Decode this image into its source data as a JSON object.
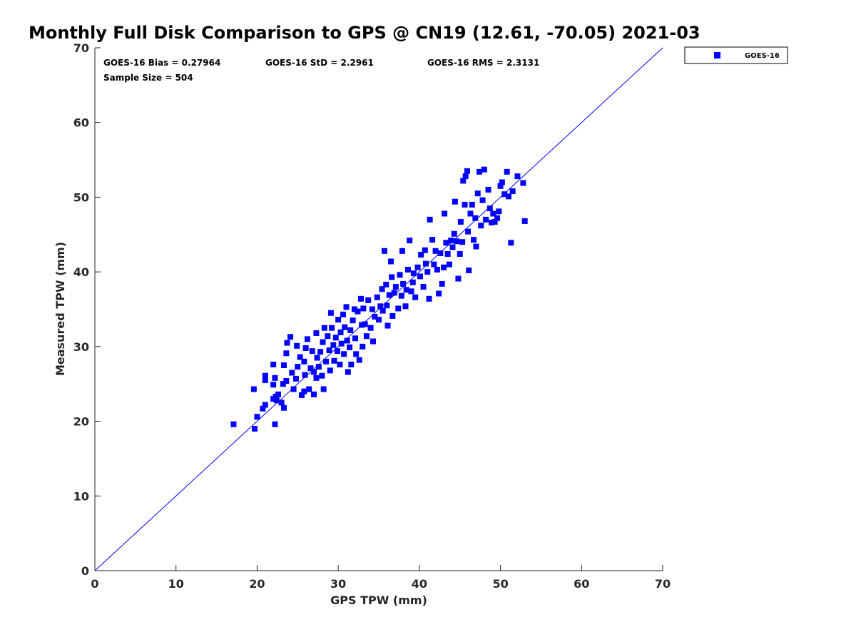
{
  "chart_data": {
    "type": "scatter",
    "title": "Monthly Full Disk Comparison to GPS @ CN19 (12.61, -70.05) 2021-03",
    "xlabel": "GPS TPW (mm)",
    "ylabel": "Measured TPW (mm)",
    "xlim": [
      0,
      70
    ],
    "ylim": [
      0,
      70
    ],
    "xticks": [
      0,
      10,
      20,
      30,
      40,
      50,
      60,
      70
    ],
    "yticks": [
      0,
      10,
      20,
      30,
      40,
      50,
      60,
      70
    ],
    "grid": false,
    "legend_position": "top-right",
    "reference_line": {
      "x": [
        0,
        70
      ],
      "y": [
        0,
        70
      ],
      "color": "#0000ff"
    },
    "stats": {
      "bias": "GOES-16 Bias = 0.27964",
      "std": "GOES-16 StD = 2.2961",
      "rms": "GOES-16 RMS = 2.3131",
      "sample_size": "Sample Size = 504"
    },
    "series": [
      {
        "name": "GOES-16",
        "color": "#0000ff",
        "marker": "square",
        "points": [
          [
            17.1,
            19.6
          ],
          [
            19.7,
            19.0
          ],
          [
            20.0,
            20.6
          ],
          [
            19.6,
            24.3
          ],
          [
            20.7,
            21.7
          ],
          [
            21.0,
            22.2
          ],
          [
            21.0,
            25.5
          ],
          [
            21.0,
            26.1
          ],
          [
            22.2,
            19.6
          ],
          [
            22.0,
            23.0
          ],
          [
            22.3,
            23.3
          ],
          [
            22.6,
            23.6
          ],
          [
            22.0,
            24.9
          ],
          [
            22.2,
            25.8
          ],
          [
            22.0,
            27.6
          ],
          [
            22.4,
            22.8
          ],
          [
            23.0,
            22.5
          ],
          [
            23.3,
            21.8
          ],
          [
            23.2,
            25.0
          ],
          [
            23.6,
            25.4
          ],
          [
            23.3,
            27.5
          ],
          [
            23.6,
            29.1
          ],
          [
            23.7,
            30.5
          ],
          [
            24.1,
            31.3
          ],
          [
            24.3,
            26.5
          ],
          [
            24.5,
            24.3
          ],
          [
            24.8,
            25.7
          ],
          [
            25.0,
            27.3
          ],
          [
            24.9,
            30.1
          ],
          [
            25.3,
            28.6
          ],
          [
            25.5,
            23.5
          ],
          [
            25.8,
            24.0
          ],
          [
            25.9,
            26.2
          ],
          [
            25.8,
            28.0
          ],
          [
            26.0,
            29.8
          ],
          [
            26.2,
            31.0
          ],
          [
            26.4,
            24.3
          ],
          [
            26.6,
            27.1
          ],
          [
            26.8,
            29.4
          ],
          [
            27.0,
            23.6
          ],
          [
            27.0,
            26.6
          ],
          [
            27.3,
            25.8
          ],
          [
            27.4,
            28.5
          ],
          [
            27.3,
            31.8
          ],
          [
            27.6,
            27.3
          ],
          [
            27.8,
            29.3
          ],
          [
            28.0,
            26.1
          ],
          [
            28.1,
            30.6
          ],
          [
            28.3,
            32.5
          ],
          [
            28.2,
            24.3
          ],
          [
            28.5,
            28.0
          ],
          [
            28.7,
            31.4
          ],
          [
            28.9,
            29.5
          ],
          [
            29.0,
            26.8
          ],
          [
            29.1,
            34.5
          ],
          [
            29.2,
            32.5
          ],
          [
            29.4,
            30.2
          ],
          [
            29.5,
            28.1
          ],
          [
            29.7,
            31.2
          ],
          [
            29.9,
            29.4
          ],
          [
            30.0,
            33.6
          ],
          [
            30.2,
            27.6
          ],
          [
            30.3,
            31.9
          ],
          [
            30.4,
            30.4
          ],
          [
            30.6,
            34.3
          ],
          [
            30.7,
            29.0
          ],
          [
            30.8,
            32.6
          ],
          [
            31.0,
            35.3
          ],
          [
            31.1,
            30.8
          ],
          [
            31.2,
            26.6
          ],
          [
            31.4,
            29.9
          ],
          [
            31.5,
            32.2
          ],
          [
            31.6,
            27.6
          ],
          [
            31.8,
            33.5
          ],
          [
            32.0,
            35.0
          ],
          [
            32.1,
            31.1
          ],
          [
            32.2,
            29.0
          ],
          [
            32.4,
            34.7
          ],
          [
            32.6,
            28.2
          ],
          [
            32.8,
            36.4
          ],
          [
            32.9,
            32.9
          ],
          [
            33.0,
            30.0
          ],
          [
            33.1,
            35.1
          ],
          [
            33.3,
            33.0
          ],
          [
            33.5,
            31.4
          ],
          [
            33.7,
            36.2
          ],
          [
            34.0,
            32.5
          ],
          [
            34.2,
            35.0
          ],
          [
            34.3,
            30.7
          ],
          [
            34.5,
            34.0
          ],
          [
            34.8,
            36.6
          ],
          [
            35.0,
            33.6
          ],
          [
            35.2,
            35.4
          ],
          [
            35.4,
            37.7
          ],
          [
            35.5,
            34.8
          ],
          [
            35.7,
            42.8
          ],
          [
            35.9,
            38.3
          ],
          [
            36.0,
            35.5
          ],
          [
            36.1,
            32.8
          ],
          [
            36.3,
            36.9
          ],
          [
            36.5,
            41.4
          ],
          [
            36.6,
            39.3
          ],
          [
            36.7,
            34.1
          ],
          [
            36.9,
            37.2
          ],
          [
            37.1,
            38.0
          ],
          [
            37.4,
            35.1
          ],
          [
            37.6,
            39.6
          ],
          [
            37.8,
            36.8
          ],
          [
            37.9,
            42.8
          ],
          [
            38.0,
            38.4
          ],
          [
            38.3,
            35.4
          ],
          [
            38.4,
            37.6
          ],
          [
            38.6,
            40.3
          ],
          [
            38.8,
            44.2
          ],
          [
            39.0,
            37.4
          ],
          [
            39.2,
            38.6
          ],
          [
            39.3,
            39.8
          ],
          [
            39.5,
            36.6
          ],
          [
            39.8,
            40.6
          ],
          [
            40.1,
            39.4
          ],
          [
            40.2,
            42.3
          ],
          [
            40.5,
            38.0
          ],
          [
            40.7,
            42.9
          ],
          [
            40.8,
            41.1
          ],
          [
            41.0,
            40.0
          ],
          [
            41.2,
            36.4
          ],
          [
            41.3,
            47.0
          ],
          [
            41.6,
            44.3
          ],
          [
            41.8,
            41.0
          ],
          [
            42.0,
            42.8
          ],
          [
            42.2,
            40.3
          ],
          [
            42.4,
            37.1
          ],
          [
            42.6,
            42.5
          ],
          [
            42.8,
            38.4
          ],
          [
            43.0,
            40.6
          ],
          [
            43.1,
            47.8
          ],
          [
            43.3,
            43.9
          ],
          [
            43.5,
            42.4
          ],
          [
            43.7,
            41.0
          ],
          [
            43.9,
            44.2
          ],
          [
            44.1,
            43.3
          ],
          [
            44.3,
            45.1
          ],
          [
            44.4,
            49.4
          ],
          [
            44.6,
            44.1
          ],
          [
            44.8,
            39.1
          ],
          [
            45.0,
            42.4
          ],
          [
            45.1,
            46.7
          ],
          [
            45.3,
            44.0
          ],
          [
            45.4,
            52.2
          ],
          [
            45.6,
            49.0
          ],
          [
            45.7,
            52.8
          ],
          [
            45.9,
            53.5
          ],
          [
            46.0,
            45.4
          ],
          [
            46.1,
            40.2
          ],
          [
            46.3,
            47.8
          ],
          [
            46.5,
            49.0
          ],
          [
            46.7,
            44.3
          ],
          [
            46.9,
            47.2
          ],
          [
            47.0,
            43.4
          ],
          [
            47.2,
            50.5
          ],
          [
            47.4,
            53.4
          ],
          [
            47.6,
            46.2
          ],
          [
            47.8,
            49.6
          ],
          [
            48.0,
            53.7
          ],
          [
            48.2,
            47.0
          ],
          [
            48.5,
            51.0
          ],
          [
            48.7,
            48.5
          ],
          [
            48.9,
            46.6
          ],
          [
            49.1,
            47.8
          ],
          [
            49.3,
            46.7
          ],
          [
            49.6,
            47.2
          ],
          [
            49.8,
            48.1
          ],
          [
            50.0,
            51.5
          ],
          [
            50.2,
            52.0
          ],
          [
            50.5,
            50.4
          ],
          [
            50.8,
            53.4
          ],
          [
            51.0,
            50.1
          ],
          [
            51.3,
            43.9
          ],
          [
            51.5,
            50.8
          ],
          [
            52.1,
            52.8
          ],
          [
            52.8,
            51.9
          ],
          [
            53.0,
            46.8
          ]
        ]
      }
    ]
  }
}
